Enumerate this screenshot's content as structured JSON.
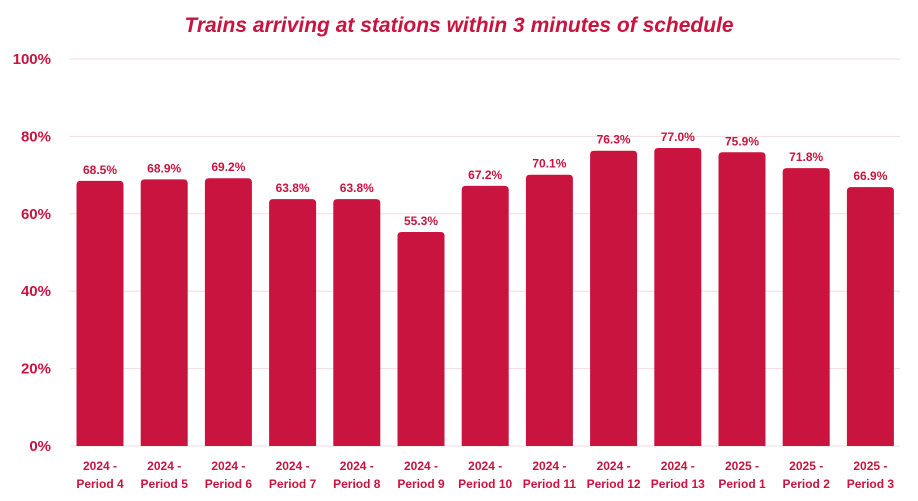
{
  "chart_data": {
    "type": "bar",
    "title": "Trains arriving at stations within 3 minutes of schedule",
    "xlabel": "",
    "ylabel": "",
    "ylim": [
      0,
      100
    ],
    "yticks": [
      "0%",
      "20%",
      "40%",
      "60%",
      "80%",
      "100%"
    ],
    "grid": true,
    "categories": [
      [
        "2024 -",
        "Period 4"
      ],
      [
        "2024 -",
        "Period 5"
      ],
      [
        "2024 -",
        "Period 6"
      ],
      [
        "2024 -",
        "Period 7"
      ],
      [
        "2024 -",
        "Period 8"
      ],
      [
        "2024 -",
        "Period 9"
      ],
      [
        "2024 -",
        "Period 10"
      ],
      [
        "2024 -",
        "Period 11"
      ],
      [
        "2024 -",
        "Period 12"
      ],
      [
        "2024 -",
        "Period 13"
      ],
      [
        "2025 -",
        "Period 1"
      ],
      [
        "2025 -",
        "Period 2"
      ],
      [
        "2025 -",
        "Period 3"
      ]
    ],
    "values": [
      68.5,
      68.9,
      69.2,
      63.8,
      63.8,
      55.3,
      67.2,
      70.1,
      76.3,
      77.0,
      75.9,
      71.8,
      66.9
    ],
    "value_labels": [
      "68.5%",
      "68.9%",
      "69.2%",
      "63.8%",
      "63.8%",
      "55.3%",
      "67.2%",
      "70.1%",
      "76.3%",
      "77.0%",
      "75.9%",
      "71.8%",
      "66.9%"
    ],
    "colors": {
      "bar": "#c8143e",
      "text": "#c8143e",
      "grid": "#f2dde2"
    }
  }
}
